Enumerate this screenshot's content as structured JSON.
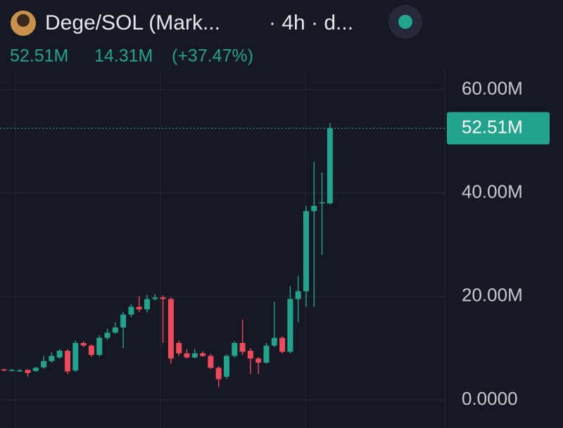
{
  "header": {
    "title": "Dege/SOL (Mark...",
    "interval": "· 4h · d...",
    "price": "52.51M",
    "change": "14.31M",
    "change_pct": "(+37.47%)"
  },
  "chart_data": {
    "type": "candlestick",
    "x": [
      null,
      null,
      null,
      null,
      null,
      null,
      null,
      null,
      null,
      null,
      null,
      null,
      null,
      null,
      null,
      null,
      null,
      null,
      null,
      null,
      null,
      null,
      null,
      null,
      null,
      null,
      null,
      null,
      null,
      null,
      null,
      null,
      null,
      null,
      null,
      null,
      null,
      null,
      null,
      null,
      null,
      null
    ],
    "open": [
      5.9,
      5.8,
      5.7,
      5.8,
      5.6,
      6.3,
      7.5,
      8.2,
      9.5,
      5.7,
      11,
      10.5,
      8.7,
      12,
      13,
      14,
      16.5,
      18,
      17.5,
      19.5,
      19.8,
      19.5,
      11,
      9,
      8.2,
      9,
      8.5,
      6.2,
      4.5,
      8.5,
      11,
      9.5,
      8,
      7.2,
      10.5,
      12,
      9.3,
      19.5,
      21,
      36.5,
      38,
      38
    ],
    "high": [
      6,
      6,
      6,
      5.9,
      6.4,
      8.5,
      9.2,
      9.8,
      9.8,
      11.5,
      11.3,
      10.8,
      12.5,
      13.8,
      15,
      17,
      18.5,
      20,
      20.3,
      20.5,
      20.2,
      19.8,
      11.5,
      9.8,
      9.8,
      9.4,
      8.9,
      6.5,
      8.8,
      11.3,
      15.5,
      10,
      8.3,
      11,
      19,
      12.3,
      22,
      24,
      37.5,
      46,
      44,
      53.5
    ],
    "low": [
      5.5,
      5.5,
      5.4,
      4.5,
      5.4,
      6,
      7.2,
      8,
      5,
      5.4,
      10.2,
      8.3,
      8.4,
      11.6,
      12.8,
      10,
      16,
      17,
      16.9,
      19.2,
      11,
      7,
      8.5,
      8,
      8,
      8.3,
      6,
      2.5,
      4,
      8.2,
      8.7,
      5,
      5,
      7,
      10.2,
      9,
      9,
      15,
      18,
      18,
      28,
      37.8
    ],
    "close": [
      5.8,
      5.8,
      5.7,
      5.2,
      6.2,
      7.5,
      8.5,
      9.5,
      5.5,
      11,
      10.5,
      8.7,
      12,
      13,
      14,
      16.5,
      18,
      17.5,
      19.5,
      19.8,
      19.5,
      8,
      9,
      8.2,
      9,
      8.5,
      6.2,
      4,
      8.5,
      11,
      9.3,
      8,
      7.2,
      10.5,
      12,
      9.3,
      19.5,
      21,
      36.5,
      37.5,
      38.2,
      52.51
    ],
    "up_color": "#22a38d",
    "down_color": "#ef4a5a",
    "ylim": [
      -5.43,
      63.72
    ],
    "yticks": [
      {
        "value": 0,
        "label": "0.0000"
      },
      {
        "value": 20,
        "label": "20.00M"
      },
      {
        "value": 40,
        "label": "40.00M"
      },
      {
        "value": 60,
        "label": "60.00M"
      }
    ],
    "last_price": {
      "value": 52.51,
      "label": "52.51M"
    },
    "grid": true
  }
}
